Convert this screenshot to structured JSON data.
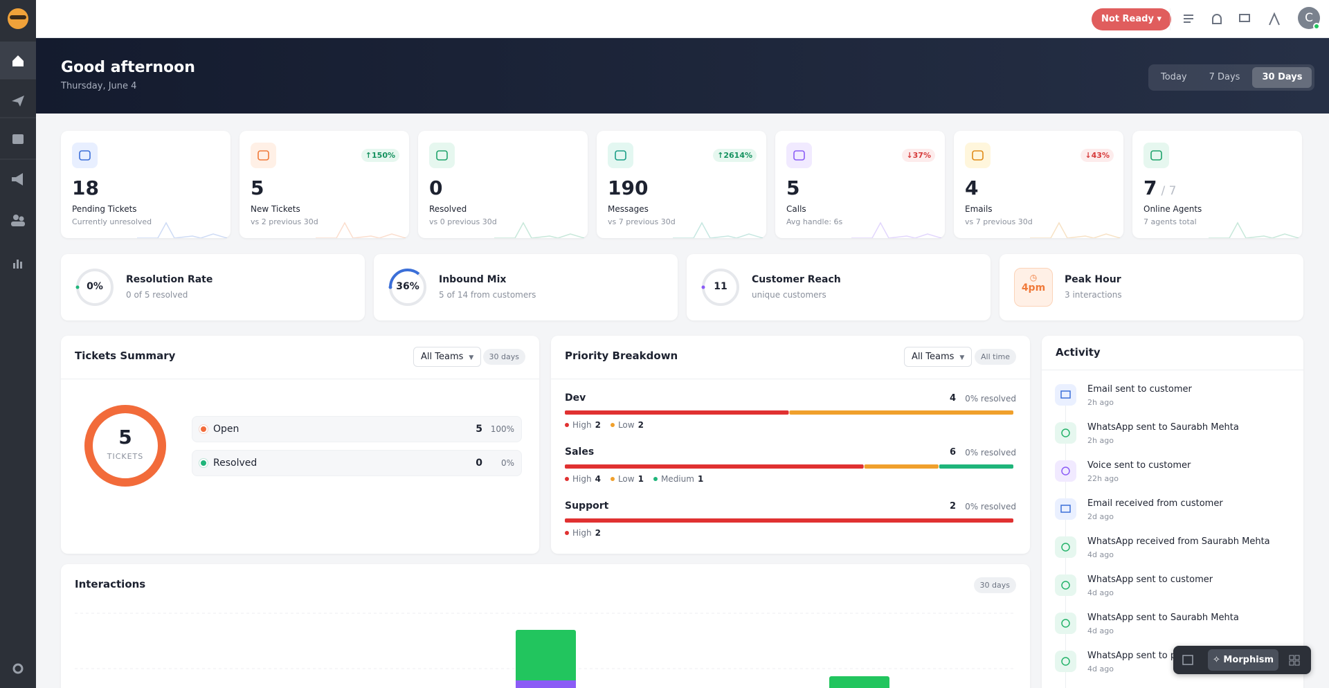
{
  "topbar": {
    "status": "Not Ready",
    "avatar": "C"
  },
  "header": {
    "greeting": "Good afternoon",
    "date": "Thursday, June 4",
    "ranges": [
      "Today",
      "7 Days",
      "30 Days"
    ],
    "active_range": 2
  },
  "stats": [
    {
      "value": 18,
      "label": "Pending Tickets",
      "sub": "Currently unresolved",
      "color": "#3b6fd8",
      "bg": "#e8efff"
    },
    {
      "value": 5,
      "label": "New Tickets",
      "sub": "vs 2 previous 30d",
      "change": "150%",
      "trend": "up",
      "color": "#f07a3a",
      "bg": "#fff0e6"
    },
    {
      "value": 0,
      "label": "Resolved",
      "sub": "vs 0 previous 30d",
      "color": "#1fa36b",
      "bg": "#e6f7ef"
    },
    {
      "value": 190,
      "label": "Messages",
      "sub": "vs 7 previous 30d",
      "change": "2614%",
      "trend": "up",
      "color": "#1a9e86",
      "bg": "#e3f7f1"
    },
    {
      "value": 5,
      "label": "Calls",
      "sub": "Avg handle: 6s",
      "change": "37%",
      "trend": "down",
      "color": "#8b5cf6",
      "bg": "#f1eaff"
    },
    {
      "value": 4,
      "label": "Emails",
      "sub": "vs 7 previous 30d",
      "change": "43%",
      "trend": "down",
      "color": "#e08a16",
      "bg": "#fff6dc"
    },
    {
      "value": 7,
      "total": "/ 7",
      "label": "Online Agents",
      "sub": "7 agents total",
      "color": "#1fa36b",
      "bg": "#e6f7ef"
    }
  ],
  "metrics": [
    {
      "value": 0,
      "value_label": "0%",
      "title": "Resolution Rate",
      "sub": "0 of 5 resolved",
      "color": "#1fb57a"
    },
    {
      "value": 36,
      "value_label": "36%",
      "title": "Inbound Mix",
      "sub": "5 of 14 from customers",
      "color": "#3b6fd8"
    },
    {
      "value": 11,
      "title": "Customer Reach",
      "sub": "unique customers",
      "color": "#8b5cf6"
    },
    {
      "value": "4pm",
      "title": "Peak Hour",
      "sub": "3 interactions",
      "color": "#f07a3a"
    }
  ],
  "tickets_summary": {
    "title": "Tickets Summary",
    "filter": "All Teams",
    "range": "30 days",
    "total": 5,
    "total_label": "TICKETS",
    "rows": [
      {
        "name": "Open",
        "count": 5,
        "share": "100%",
        "color": "#f26b3a"
      },
      {
        "name": "Resolved",
        "count": 0,
        "share": "0%",
        "color": "#1fb57a"
      }
    ]
  },
  "priority": {
    "title": "Priority Breakdown",
    "filter": "All Teams",
    "range": "All time",
    "teams": [
      {
        "name": "Dev",
        "total": 4,
        "resolved": "0% resolved",
        "levels": [
          {
            "name": "High",
            "count": 2,
            "color": "#e03131"
          },
          {
            "name": "Low",
            "count": 2,
            "color": "#f0a02c"
          }
        ]
      },
      {
        "name": "Sales",
        "total": 6,
        "resolved": "0% resolved",
        "levels": [
          {
            "name": "High",
            "count": 4,
            "color": "#e03131"
          },
          {
            "name": "Low",
            "count": 1,
            "color": "#f0a02c"
          },
          {
            "name": "Medium",
            "count": 1,
            "color": "#1fb57a"
          }
        ]
      },
      {
        "name": "Support",
        "total": 2,
        "resolved": "0% resolved",
        "levels": [
          {
            "name": "High",
            "count": 2,
            "color": "#e03131"
          }
        ]
      }
    ]
  },
  "activity": {
    "title": "Activity",
    "items": [
      {
        "text": "Email sent to customer",
        "time": "2h ago",
        "channel": "email"
      },
      {
        "text": "WhatsApp sent to Saurabh Mehta",
        "time": "2h ago",
        "channel": "whatsapp"
      },
      {
        "text": "Voice sent to customer",
        "time": "22h ago",
        "channel": "voice"
      },
      {
        "text": "Email received from customer",
        "time": "2d ago",
        "channel": "email"
      },
      {
        "text": "WhatsApp received from Saurabh Mehta",
        "time": "4d ago",
        "channel": "whatsapp"
      },
      {
        "text": "WhatsApp sent to customer",
        "time": "4d ago",
        "channel": "whatsapp"
      },
      {
        "text": "WhatsApp sent to Saurabh Mehta",
        "time": "4d ago",
        "channel": "whatsapp"
      },
      {
        "text": "WhatsApp sent to pa",
        "time": "4d ago",
        "channel": "whatsapp"
      }
    ]
  },
  "interactions": {
    "title": "Interactions",
    "range": "30 days"
  },
  "widget": {
    "label": "Morphism"
  }
}
